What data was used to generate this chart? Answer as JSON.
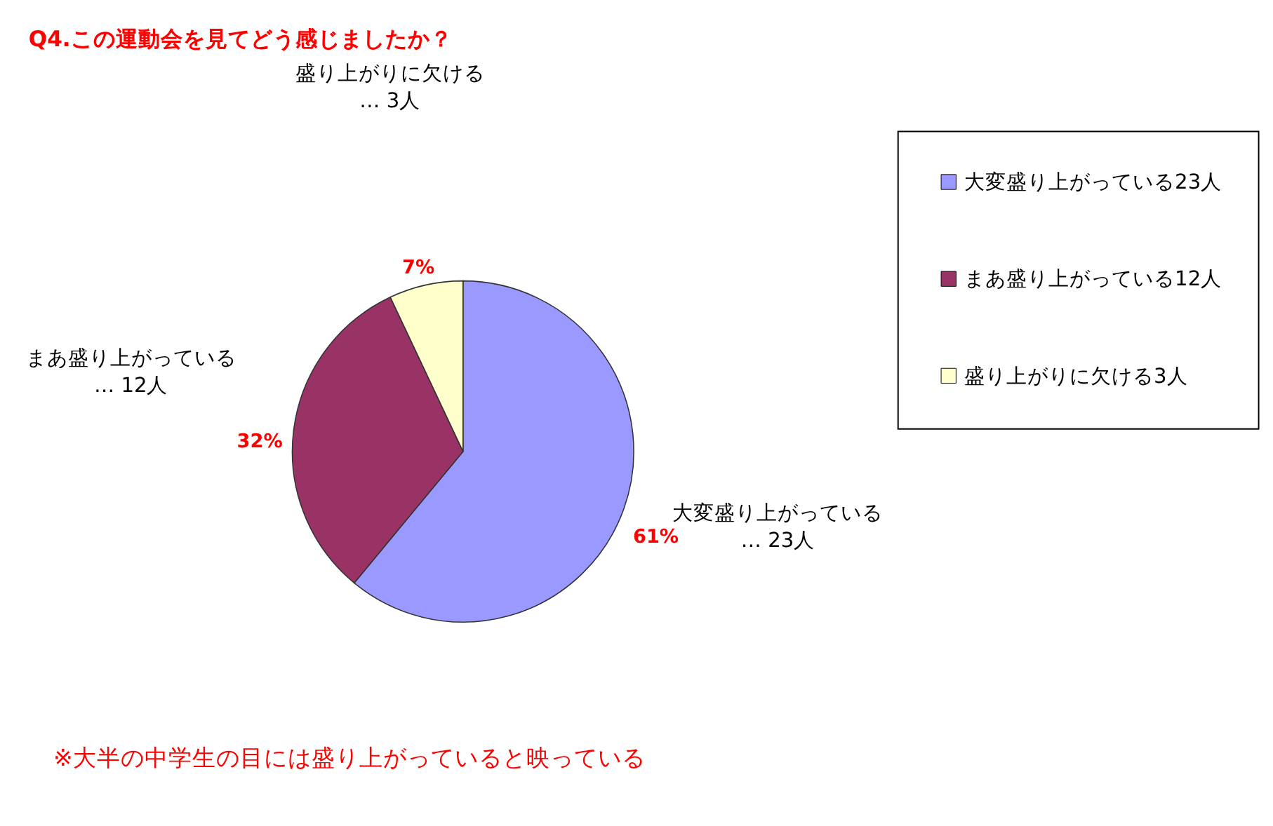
{
  "chart_data": {
    "type": "pie",
    "title": "Q4.この運動会を見てどう感じましたか？",
    "categories": [
      "大変盛り上がっている23人",
      "まあ盛り上がっている12人",
      "盛り上がりに欠ける3人"
    ],
    "values": [
      61,
      32,
      7
    ],
    "colors": [
      "#9999ff",
      "#993366",
      "#ffffcc"
    ],
    "value_labels": [
      "61%",
      "32%",
      "7%"
    ],
    "annotations": [
      "大変盛り上がっている… 23人",
      "まあ盛り上がっている… 12人",
      "盛り上がりに欠ける… 3人",
      "※大半の中学生の目には盛り上がっていると映っている"
    ],
    "legend": "right"
  }
}
